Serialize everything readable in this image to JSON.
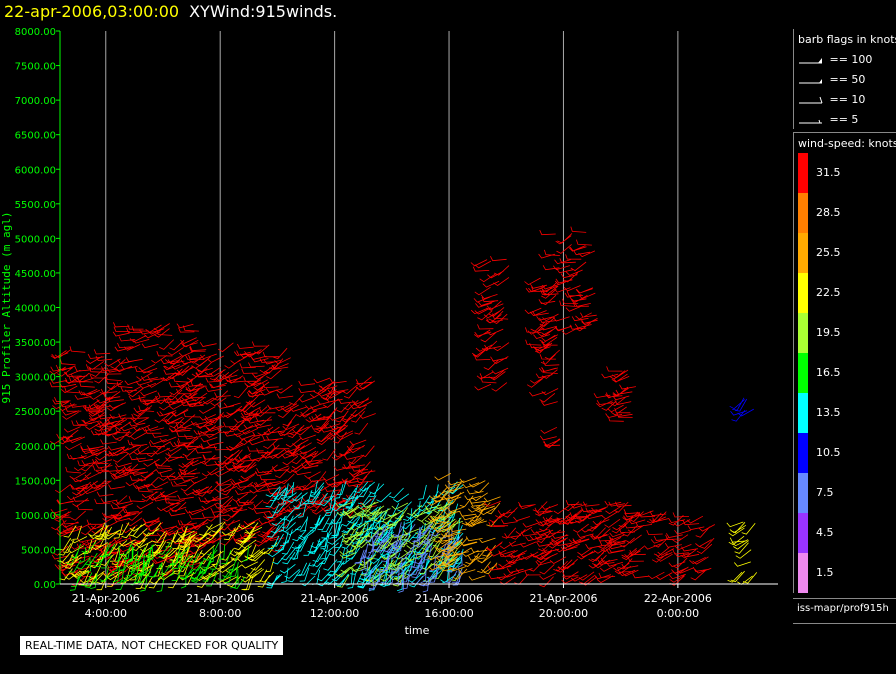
{
  "header": {
    "datetime": "22-apr-2006,03:00:00",
    "product": "XYWind:915winds."
  },
  "footer": {
    "notice": "REAL-TIME DATA, NOT CHECKED FOR QUALITY"
  },
  "source": "iss-mapr/prof915h",
  "colors": {
    "axis_y": "#00ff00",
    "axis_x": "#ffffff",
    "background": "#000000",
    "title_datetime": "#ffff00"
  },
  "barb_legend": {
    "title": "barb flags in knots",
    "items": [
      {
        "label": "== 100",
        "type": "flag"
      },
      {
        "label": "== 50",
        "type": "flag"
      },
      {
        "label": "== 10",
        "type": "full"
      },
      {
        "label": "== 5",
        "type": "half"
      }
    ]
  },
  "color_legend": {
    "title": "wind-speed: knots",
    "bins": [
      {
        "label": "31.5",
        "color": "#ff0000"
      },
      {
        "label": "28.5",
        "color": "#ff7f00"
      },
      {
        "label": "25.5",
        "color": "#ffaa00"
      },
      {
        "label": "22.5",
        "color": "#ffff00"
      },
      {
        "label": "19.5",
        "color": "#aaff33"
      },
      {
        "label": "16.5",
        "color": "#00ff00"
      },
      {
        "label": "13.5",
        "color": "#00ffff"
      },
      {
        "label": "10.5",
        "color": "#0000ff"
      },
      {
        "label": "7.5",
        "color": "#6688ff"
      },
      {
        "label": "4.5",
        "color": "#9933ff"
      },
      {
        "label": "1.5",
        "color": "#ee88ee"
      }
    ]
  },
  "chart_data": {
    "type": "scatter",
    "title": "XYWind:915winds.",
    "xlabel": "time",
    "ylabel": "915 Profiler Altitude (m agl)",
    "ylim": [
      0,
      8000
    ],
    "xlim_hours": [
      2.4,
      27.5
    ],
    "yticks": [
      "0.00",
      "500.00",
      "1000.00",
      "1500.00",
      "2000.00",
      "2500.00",
      "3000.00",
      "3500.00",
      "4000.00",
      "4500.00",
      "5000.00",
      "5500.00",
      "6000.00",
      "6500.00",
      "7000.00",
      "7500.00",
      "8000.00"
    ],
    "xticks": [
      {
        "date": "21-Apr-2006",
        "time": "4:00:00",
        "hour": 4
      },
      {
        "date": "21-Apr-2006",
        "time": "8:00:00",
        "hour": 8
      },
      {
        "date": "21-Apr-2006",
        "time": "12:00:00",
        "hour": 12
      },
      {
        "date": "21-Apr-2006",
        "time": "16:00:00",
        "hour": 16
      },
      {
        "date": "21-Apr-2006",
        "time": "20:00:00",
        "hour": 20
      },
      {
        "date": "22-Apr-2006",
        "time": "0:00:00",
        "hour": 24
      }
    ],
    "grid": "vertical",
    "clusters": [
      {
        "t0": 2.6,
        "t1": 4.8,
        "z0": 100,
        "z1": 3400,
        "speed": 31.5,
        "dir": 250
      },
      {
        "t0": 4.8,
        "t1": 7.6,
        "z0": 200,
        "z1": 3800,
        "speed": 31.5,
        "dir": 250
      },
      {
        "t0": 7.6,
        "t1": 10.5,
        "z0": 600,
        "z1": 3500,
        "speed": 31.5,
        "dir": 245
      },
      {
        "t0": 10.5,
        "t1": 13.5,
        "z0": 1100,
        "z1": 3000,
        "speed": 31.5,
        "dir": 240
      },
      {
        "t0": 2.6,
        "t1": 10.0,
        "z0": 100,
        "z1": 900,
        "speed": 22.5,
        "dir": 220
      },
      {
        "t0": 3.0,
        "t1": 9.0,
        "z0": 100,
        "z1": 600,
        "speed": 16.5,
        "dir": 200
      },
      {
        "t0": 10.0,
        "t1": 16.5,
        "z0": 100,
        "z1": 1500,
        "speed": 13.5,
        "dir": 210
      },
      {
        "t0": 12.5,
        "t1": 16.5,
        "z0": 100,
        "z1": 1200,
        "speed": 19.5,
        "dir": 230
      },
      {
        "t0": 13.0,
        "t1": 16.5,
        "z0": 100,
        "z1": 900,
        "speed": 7.5,
        "dir": 200
      },
      {
        "t0": 15.8,
        "t1": 17.8,
        "z0": 100,
        "z1": 1600,
        "speed": 25.5,
        "dir": 240
      },
      {
        "t0": 17.8,
        "t1": 24.0,
        "z0": 100,
        "z1": 1200,
        "speed": 31.5,
        "dir": 245
      },
      {
        "t0": 24.1,
        "t1": 25.3,
        "z0": 100,
        "z1": 1000,
        "speed": 31.5,
        "dir": 245
      },
      {
        "t0": 26.2,
        "t1": 26.8,
        "z0": 100,
        "z1": 900,
        "speed": 22.5,
        "dir": 240
      },
      {
        "t0": 17.3,
        "t1": 18.1,
        "z0": 2800,
        "z1": 4700,
        "speed": 31.5,
        "dir": 250
      },
      {
        "t0": 19.2,
        "t1": 19.9,
        "z0": 2700,
        "z1": 4500,
        "speed": 31.5,
        "dir": 250
      },
      {
        "t0": 19.7,
        "t1": 19.9,
        "z0": 2000,
        "z1": 5300,
        "speed": 31.5,
        "dir": 250
      },
      {
        "t0": 20.2,
        "t1": 21.2,
        "z0": 3700,
        "z1": 5100,
        "speed": 31.5,
        "dir": 250
      },
      {
        "t0": 21.6,
        "t1": 22.6,
        "z0": 2300,
        "z1": 3100,
        "speed": 31.5,
        "dir": 250
      },
      {
        "t0": 26.3,
        "t1": 26.8,
        "z0": 2500,
        "z1": 2700,
        "speed": 10.5,
        "dir": 230
      }
    ]
  }
}
